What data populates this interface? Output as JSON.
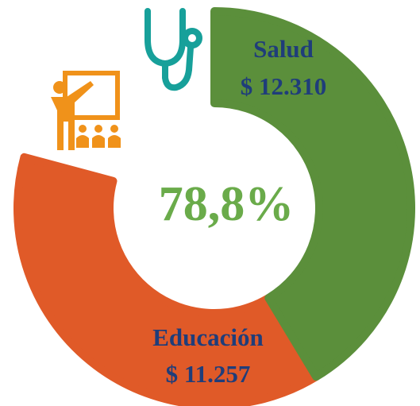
{
  "chart_data": {
    "type": "donut",
    "center_label": "78,8%",
    "categories": [
      "Salud",
      "Educación"
    ],
    "values": [
      12310,
      11257
    ],
    "value_labels": [
      "$ 12.310",
      "$ 11.257"
    ],
    "colors": [
      "#5b8f3b",
      "#e05a28"
    ]
  }
}
